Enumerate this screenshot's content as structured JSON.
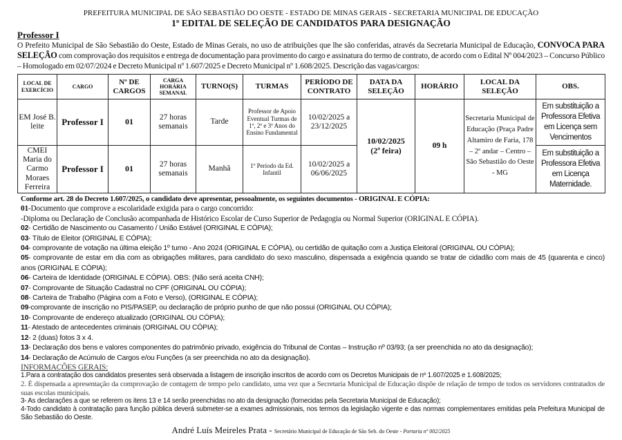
{
  "header": {
    "line1": "PREFEITURA MUNICIPAL DE SÃO SEBASTIÃO DO OESTE - ESTADO DE MINAS GERAIS - SECRETARIA MUNICIPAL DE EDUCAÇÃO",
    "title": "1º EDITAL DE SELEÇÃO DE CANDIDATOS PARA DESIGNAÇÃO"
  },
  "section": "Professor I",
  "intro": {
    "p1": "O Prefeito Municipal de São Sebastião do Oeste, Estado de Minas Gerais, no uso de atribuições que lhe são conferidas, através da Secretaria Municipal de Educação,",
    "bold": "CONVOCA PARA SELEÇÃO",
    "p2": " com comprovação dos requisitos e entrega de documentação para provimento do cargo e assinatura do termo de contrato, de acordo com o Edital Nº 004/2023 – Concurso Público – Homologado em 02/07/2024 e  Decreto Municipal nº 1.607/2025 e Decreto Municipal nº 1.608/2025. Descrição das vagas/cargos:"
  },
  "table": {
    "headers": [
      "LOCAL DE EXERCÍCIO",
      "CARGO",
      "Nº DE CARGOS",
      "CARGA HORÁRIA SEMANAL",
      "TURNO(S)",
      "TURMAS",
      "PERÍODO DE CONTRATO",
      "DATA DA SELEÇÃO",
      "HORÁRIO",
      "LOCAL DA SELEÇÃO",
      "OBS."
    ],
    "rows": [
      {
        "local": "EM José B. leite",
        "cargo": "Professor I",
        "n": "01",
        "carga": "27 horas semanais",
        "turno": "Tarde",
        "turmas": "Professor de Apoio Eventual Turmas de 1º, 2º e 3º Anos do Ensino Fundamental",
        "periodo": "10/02/2025 a 23/12/2025",
        "obs": "Em substituição a Professora Efetiva em Licença sem Vencimentos"
      },
      {
        "local": "CMEI Maria do Carmo Moraes Ferreira",
        "cargo": "Professor I",
        "n": "01",
        "carga": "27 horas semanais",
        "turno": "Manhã",
        "turmas": "1º Periodo da Ed. Infantil",
        "periodo": "10/02/2025 a 06/06/2025",
        "obs": "Em substituição a Professora Efetiva em Licença Maternidade."
      }
    ],
    "data_selecao": "10/02/2025",
    "dia_selecao": "(2ª feira)",
    "horario": "09 h",
    "local_selecao": "Secretaria Municipal de Educação (Praça Padre Altamiro de Faria, 178 – 2º andar – Centro – São Sebastião do Oeste - MG"
  },
  "docs": {
    "intro": "Conforme art. 28 do Decreto 1.607/2025, o candidato deve apresentar, pessoalmente, os seguintes documentos - ORIGINAL E CÓPIA:",
    "items": [
      {
        "n": "01",
        "t": "-Documento que comprove a escolaridade exigida para o cargo concorrido:"
      },
      {
        "n": "",
        "t": "-Diploma ou Declaração de Conclusão acompanhada de Histórico Escolar de Curso Superior de Pedagogia ou Normal Superior (ORIGINAL E CÓPIA)."
      },
      {
        "n": "02",
        "t": "-  Certidão de Nascimento ou Casamento / União Estável (ORIGINAL E CÓPIA);"
      },
      {
        "n": "03",
        "t": "- Título de Eleitor (ORIGINAL E CÓPIA);"
      },
      {
        "n": "04",
        "t": "- comprovante de votação na última eleição  1º turno - Ano 2024 (ORIGINAL E CÓPIA), ou certidão de quitação com a Justiça Eleitoral (ORIGINAL OU CÓPIA);"
      },
      {
        "n": "05",
        "t": "- comprovante de estar em dia com as obrigações militares, para candidato do sexo masculino, dispensada a exigência quando se tratar de cidadão com mais de 45 (quarenta e cinco) anos (ORIGINAL E CÓPIA);"
      },
      {
        "n": "06",
        "t": "- Carteira de Identidade (ORIGINAL E CÓPIA). OBS: (Não será aceita CNH);"
      },
      {
        "n": "07",
        "t": "- Comprovante de Situação Cadastral no CPF (ORIGINAL  OU CÓPIA);"
      },
      {
        "n": "08",
        "t": "- Carteira de Trabalho (Página com a Foto e Verso), (ORIGINAL E CÓPIA);"
      },
      {
        "n": "09",
        "t": "-comprovante de inscrição no PIS/PASEP, ou declaração de próprio punho de que não possui (ORIGINAL OU CÓPIA);"
      },
      {
        "n": "10",
        "t": "- Comprovante de endereço atualizado (ORIGINAL OU CÓPIA);"
      },
      {
        "n": "11",
        "t": "- Atestado de antecedentes criminais (ORIGINAL OU CÓPIA);"
      },
      {
        "n": "12",
        "t": "- 2 (duas) fotos 3 x 4."
      },
      {
        "n": "13",
        "t": "- Declaração dos bens e valores componentes do patrimônio privado, exigência do Tribunal de Contas – Instrução nº 03/93; (a ser preenchida no ato da designação);"
      },
      {
        "n": "14",
        "t": "- Declaração de Acúmulo de Cargos e/ou Funções (a ser preenchida no ato da designação)."
      }
    ]
  },
  "info": {
    "title": "INFORMAÇÕES GERAIS:",
    "i1": "1.Para a contratação dos candidatos presentes será observada a listagem de inscrição inscritos de acordo com os Decretos Municipais de nº  1.607/2025 e 1.608/2025;",
    "i2": "2. É dispensada a apresentação da comprovação de contagem de tempo pelo candidato, uma vez que a Secretaria Municipal de Educação dispõe de relação de tempo de todos os servidores contratados de suas escolas municipais.",
    "i3": "3- As declarações a que se referem os itens 13 e 14 serão preenchidas no ato da designação (fornecidas pela Secretaria Municipal de Educação);",
    "i4": "4-Todo candidato à contratação para função pública deverá submeter-se a exames admissionais, nos termos da legislação vigente e das normas complementares emitidas pela Prefeitura Municipal de São Sebastião do Oeste."
  },
  "signature": {
    "name": "André Luís Meireles Prata",
    "sep": " - ",
    "role": "Secretário Municipal de Educação de São Seb. do Oeste - ",
    "portaria": "Portaria nº 002/2025"
  }
}
